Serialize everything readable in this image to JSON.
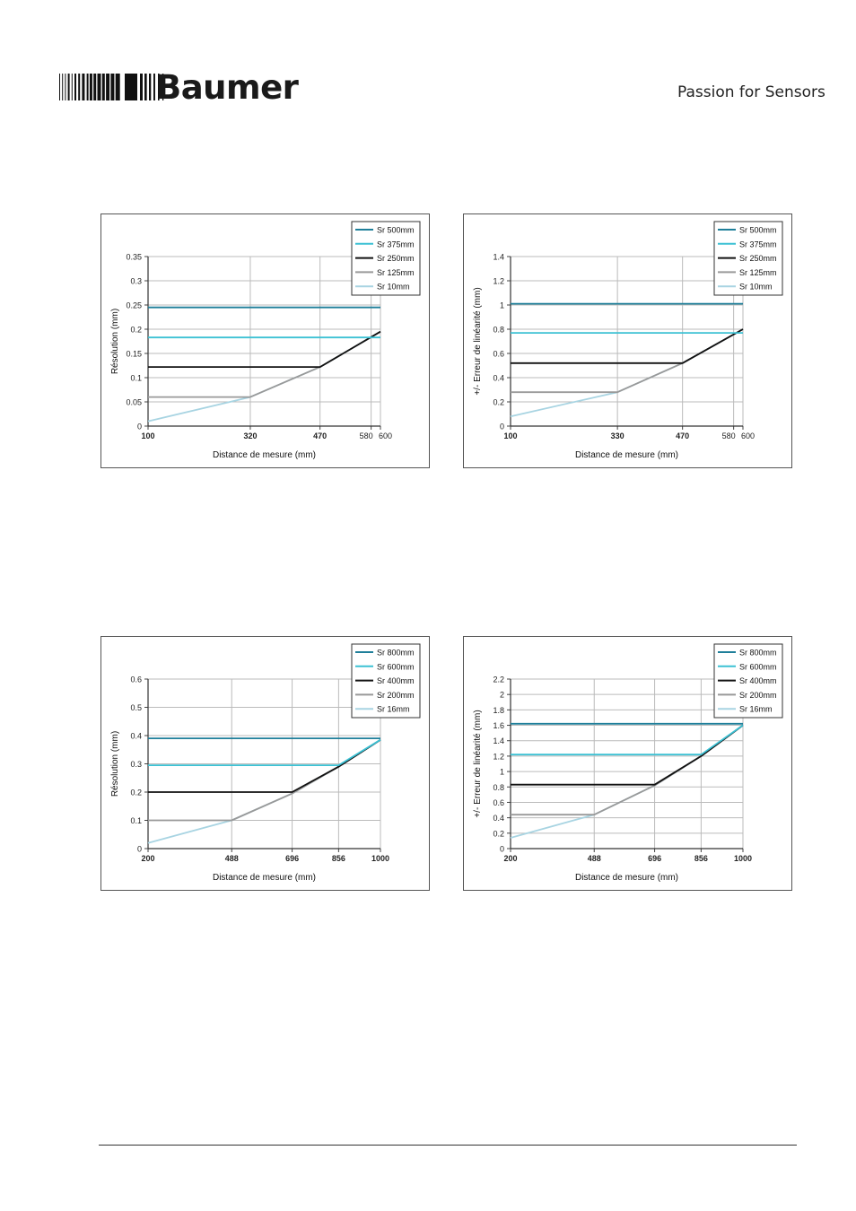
{
  "header": {
    "brand": "Baumer",
    "tagline": "Passion for Sensors"
  },
  "colors": {
    "series": [
      "#1f7f9a",
      "#3cc1d4",
      "#111111",
      "#999999",
      "#a8d4e2"
    ],
    "grid": "#bbbbbb",
    "frame": "#555555"
  },
  "chart_data": [
    {
      "type": "line",
      "xlabel": "Distance de mesure (mm)",
      "ylabel": "Résolution (mm)",
      "xlim": [
        100,
        600
      ],
      "ylim": [
        0,
        0.35
      ],
      "xticks": [
        100,
        320,
        470,
        580,
        600
      ],
      "yticks": [
        0,
        0.05,
        0.1,
        0.15,
        0.2,
        0.25,
        0.3,
        0.35
      ],
      "grid": true,
      "legend_position": "top-right",
      "series": [
        {
          "name": "Sr 500mm",
          "x": [
            100,
            600
          ],
          "y": [
            0.245,
            0.245
          ]
        },
        {
          "name": "Sr 375mm",
          "x": [
            100,
            600
          ],
          "y": [
            0.183,
            0.183
          ]
        },
        {
          "name": "Sr 250mm",
          "x": [
            100,
            470,
            600
          ],
          "y": [
            0.122,
            0.122,
            0.195
          ]
        },
        {
          "name": "Sr 125mm",
          "x": [
            100,
            320,
            470,
            600
          ],
          "y": [
            0.06,
            0.06,
            0.122,
            0.195
          ]
        },
        {
          "name": "Sr 10mm",
          "x": [
            100,
            320,
            470,
            600
          ],
          "y": [
            0.01,
            0.06,
            0.122,
            0.195
          ]
        }
      ]
    },
    {
      "type": "line",
      "xlabel": "Distance de mesure (mm)",
      "ylabel": "+/- Erreur de linéarité (mm)",
      "xlim": [
        100,
        600
      ],
      "ylim": [
        0,
        1.4
      ],
      "xticks": [
        100,
        330,
        470,
        580,
        600
      ],
      "yticks": [
        0,
        0.2,
        0.4,
        0.6,
        0.8,
        1,
        1.2,
        1.4
      ],
      "grid": true,
      "legend_position": "top-right",
      "series": [
        {
          "name": "Sr 500mm",
          "x": [
            100,
            600
          ],
          "y": [
            1.01,
            1.01
          ]
        },
        {
          "name": "Sr 375mm",
          "x": [
            100,
            600
          ],
          "y": [
            0.77,
            0.77
          ]
        },
        {
          "name": "Sr 250mm",
          "x": [
            100,
            470,
            600
          ],
          "y": [
            0.52,
            0.52,
            0.8
          ]
        },
        {
          "name": "Sr 125mm",
          "x": [
            100,
            330,
            470,
            600
          ],
          "y": [
            0.28,
            0.28,
            0.52,
            0.8
          ]
        },
        {
          "name": "Sr 10mm",
          "x": [
            100,
            330,
            470,
            600
          ],
          "y": [
            0.08,
            0.28,
            0.52,
            0.8
          ]
        }
      ]
    },
    {
      "type": "line",
      "xlabel": "Distance de mesure (mm)",
      "ylabel": "Résolution (mm)",
      "xlim": [
        200,
        1000
      ],
      "ylim": [
        0,
        0.6
      ],
      "xticks": [
        200,
        488,
        696,
        856,
        1000
      ],
      "yticks": [
        0,
        0.1,
        0.2,
        0.3,
        0.4,
        0.5,
        0.6
      ],
      "grid": true,
      "legend_position": "top-right",
      "series": [
        {
          "name": "Sr 800mm",
          "x": [
            200,
            1000
          ],
          "y": [
            0.39,
            0.39
          ]
        },
        {
          "name": "Sr 600mm",
          "x": [
            200,
            856,
            1000
          ],
          "y": [
            0.295,
            0.295,
            0.385
          ]
        },
        {
          "name": "Sr 400mm",
          "x": [
            200,
            696,
            856,
            1000
          ],
          "y": [
            0.2,
            0.2,
            0.29,
            0.385
          ]
        },
        {
          "name": "Sr 200mm",
          "x": [
            200,
            488,
            696,
            856,
            1000
          ],
          "y": [
            0.1,
            0.1,
            0.195,
            0.29,
            0.385
          ]
        },
        {
          "name": "Sr 16mm",
          "x": [
            200,
            488,
            696,
            856,
            1000
          ],
          "y": [
            0.02,
            0.1,
            0.195,
            0.29,
            0.385
          ]
        }
      ]
    },
    {
      "type": "line",
      "xlabel": "Distance de mesure (mm)",
      "ylabel": "+/- Erreur de linéarité (mm)",
      "xlim": [
        200,
        1000
      ],
      "ylim": [
        0,
        2.2
      ],
      "xticks": [
        200,
        488,
        696,
        856,
        1000
      ],
      "yticks": [
        0,
        0.2,
        0.4,
        0.6,
        0.8,
        1,
        1.2,
        1.4,
        1.6,
        1.8,
        2,
        2.2
      ],
      "grid": true,
      "legend_position": "top-right",
      "series": [
        {
          "name": "Sr 800mm",
          "x": [
            200,
            1000
          ],
          "y": [
            1.62,
            1.62
          ]
        },
        {
          "name": "Sr 600mm",
          "x": [
            200,
            856,
            1000
          ],
          "y": [
            1.22,
            1.22,
            1.6
          ]
        },
        {
          "name": "Sr 400mm",
          "x": [
            200,
            696,
            856,
            1000
          ],
          "y": [
            0.83,
            0.83,
            1.2,
            1.6
          ]
        },
        {
          "name": "Sr 200mm",
          "x": [
            200,
            488,
            696,
            856,
            1000
          ],
          "y": [
            0.44,
            0.44,
            0.82,
            1.2,
            1.6
          ]
        },
        {
          "name": "Sr 16mm",
          "x": [
            200,
            488,
            696,
            856,
            1000
          ],
          "y": [
            0.14,
            0.44,
            0.82,
            1.2,
            1.6
          ]
        }
      ]
    }
  ]
}
